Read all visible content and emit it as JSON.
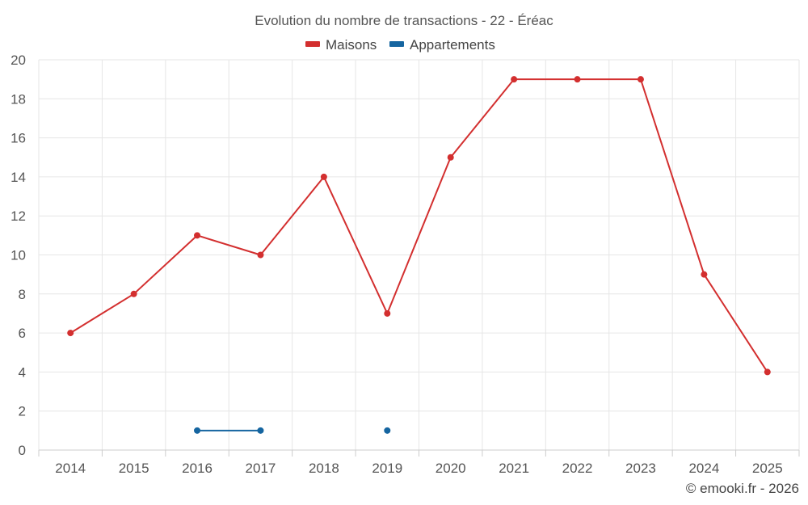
{
  "chart_data": {
    "type": "line",
    "title": "Evolution du nombre de transactions - 22 - Éréac",
    "categories": [
      "2014",
      "2015",
      "2016",
      "2017",
      "2018",
      "2019",
      "2020",
      "2021",
      "2022",
      "2023",
      "2024",
      "2025"
    ],
    "ylim": [
      0,
      20
    ],
    "yticks": [
      0,
      2,
      4,
      6,
      8,
      10,
      12,
      14,
      16,
      18,
      20
    ],
    "grid": true,
    "legend_position": "top-center",
    "series": [
      {
        "name": "Maisons",
        "color": "#d32f2f",
        "values": [
          6,
          8,
          11,
          10,
          14,
          7,
          15,
          19,
          19,
          19,
          9,
          4
        ]
      },
      {
        "name": "Appartements",
        "color": "#1565a0",
        "values": [
          null,
          null,
          1,
          1,
          null,
          1,
          null,
          null,
          null,
          null,
          null,
          null
        ]
      }
    ],
    "credit": "© emooki.fr - 2026"
  }
}
